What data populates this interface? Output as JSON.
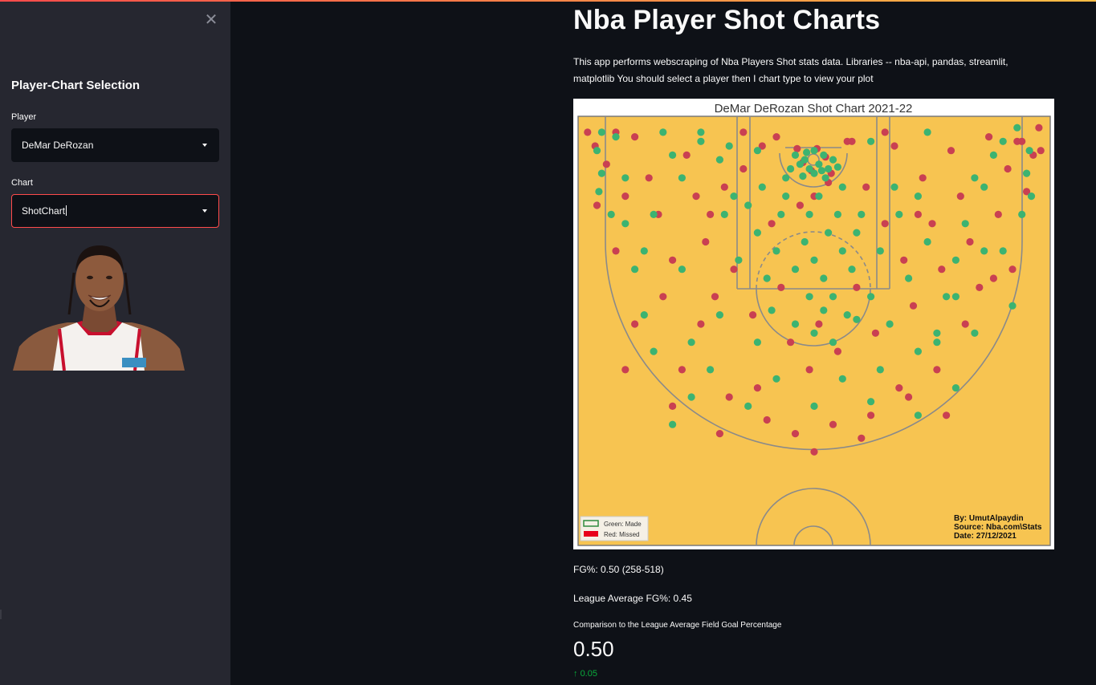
{
  "sidebar": {
    "close_icon": "close-icon",
    "heading": "Player-Chart Selection",
    "player_label": "Player",
    "player_value": "DeMar DeRozan",
    "chart_label": "Chart",
    "chart_value": "ShotChart"
  },
  "main": {
    "title": "Nba Player Shot Charts",
    "description": "This app performs webscraping of Nba Players Shot stats data. Libraries -- nba-api, pandas, streamlit, matplotlib You should select a player then I chart type to view your plot",
    "fg_text": "FG%: 0.50 (258-518)",
    "league_text": "League Average FG%: 0.45",
    "metric_label": "Comparison to the League Average Field Goal Percentage",
    "metric_value": "0.50",
    "metric_delta": "0.05",
    "delta_icon": "arrow-up-icon"
  },
  "colors": {
    "accent": "#ff4b4b",
    "court": "#f7c451",
    "made": "#3cb371",
    "missed": "#c94052",
    "delta": "#09ab3b"
  },
  "chart_data": {
    "type": "scatter",
    "title": "DeMar DeRozan Shot Chart 2021-22",
    "legend": {
      "placement": "bottom-left",
      "made_label": "Green: Made",
      "missed_label": "Red: Missed"
    },
    "credits": [
      "By: UmutAlpaydin",
      "Source: Nba.com\\Stats",
      "Date: 27/12/2021"
    ],
    "xlim": [
      -250,
      250
    ],
    "ylim": [
      -47.5,
      422.5
    ],
    "made": [
      [
        -230,
        -10
      ],
      [
        -225,
        15
      ],
      [
        -228,
        35
      ],
      [
        -215,
        60
      ],
      [
        -160,
        -30
      ],
      [
        -150,
        -5
      ],
      [
        -140,
        20
      ],
      [
        -120,
        -20
      ],
      [
        -100,
        0
      ],
      [
        -95,
        60
      ],
      [
        -90,
        -15
      ],
      [
        -80,
        110
      ],
      [
        -70,
        50
      ],
      [
        -60,
        80
      ],
      [
        -55,
        30
      ],
      [
        -50,
        130
      ],
      [
        -40,
        100
      ],
      [
        -35,
        60
      ],
      [
        -30,
        40
      ],
      [
        -20,
        120
      ],
      [
        -10,
        90
      ],
      [
        -5,
        60
      ],
      [
        0,
        110
      ],
      [
        5,
        40
      ],
      [
        10,
        130
      ],
      [
        15,
        80
      ],
      [
        20,
        150
      ],
      [
        25,
        60
      ],
      [
        30,
        100
      ],
      [
        35,
        170
      ],
      [
        40,
        120
      ],
      [
        45,
        80
      ],
      [
        50,
        60
      ],
      [
        60,
        150
      ],
      [
        70,
        100
      ],
      [
        80,
        180
      ],
      [
        90,
        60
      ],
      [
        100,
        130
      ],
      [
        110,
        40
      ],
      [
        120,
        90
      ],
      [
        130,
        200
      ],
      [
        140,
        150
      ],
      [
        150,
        110
      ],
      [
        160,
        70
      ],
      [
        170,
        190
      ],
      [
        180,
        30
      ],
      [
        190,
        -5
      ],
      [
        200,
        100
      ],
      [
        210,
        160
      ],
      [
        220,
        60
      ],
      [
        225,
        15
      ],
      [
        228,
        -10
      ],
      [
        230,
        40
      ],
      [
        -10,
        0
      ],
      [
        5,
        5
      ],
      [
        10,
        -5
      ],
      [
        -5,
        10
      ],
      [
        15,
        10
      ],
      [
        -15,
        5
      ],
      [
        0,
        15
      ],
      [
        20,
        0
      ],
      [
        -20,
        -5
      ],
      [
        8,
        12
      ],
      [
        -8,
        -8
      ],
      [
        25,
        8
      ],
      [
        -25,
        10
      ],
      [
        0,
        -10
      ],
      [
        12,
        20
      ],
      [
        -12,
        18
      ],
      [
        -170,
        210
      ],
      [
        -190,
        120
      ],
      [
        -200,
        70
      ],
      [
        -180,
        170
      ],
      [
        -130,
        260
      ],
      [
        -110,
        230
      ],
      [
        -60,
        200
      ],
      [
        -40,
        240
      ],
      [
        0,
        270
      ],
      [
        30,
        240
      ],
      [
        70,
        230
      ],
      [
        110,
        210
      ],
      [
        150,
        250
      ],
      [
        110,
        280
      ],
      [
        60,
        265
      ],
      [
        -70,
        270
      ],
      [
        -150,
        290
      ],
      [
        -100,
        170
      ],
      [
        -140,
        120
      ],
      [
        -30,
        20
      ],
      [
        30,
        30
      ],
      [
        -60,
        -10
      ],
      [
        60,
        -20
      ],
      [
        -85,
        40
      ],
      [
        85,
        30
      ],
      [
        150,
        150
      ],
      [
        -170,
        60
      ],
      [
        -120,
        -30
      ],
      [
        120,
        -30
      ],
      [
        170,
        20
      ],
      [
        -200,
        20
      ],
      [
        -210,
        -25
      ],
      [
        -225,
        -30
      ],
      [
        200,
        -20
      ],
      [
        215,
        -35
      ],
      [
        -180,
        100
      ],
      [
        180,
        100
      ],
      [
        -130,
        200
      ],
      [
        130,
        190
      ],
      [
        0,
        190
      ],
      [
        20,
        200
      ],
      [
        -20,
        180
      ],
      [
        45,
        175
      ],
      [
        -45,
        165
      ],
      [
        -5,
        150
      ],
      [
        10,
        165
      ]
    ],
    "missed": [
      [
        -232,
        -15
      ],
      [
        -220,
        5
      ],
      [
        -210,
        -30
      ],
      [
        -200,
        40
      ],
      [
        -190,
        -25
      ],
      [
        -175,
        20
      ],
      [
        -165,
        60
      ],
      [
        -150,
        110
      ],
      [
        -135,
        -5
      ],
      [
        -125,
        40
      ],
      [
        -115,
        90
      ],
      [
        -105,
        150
      ],
      [
        -95,
        30
      ],
      [
        -85,
        120
      ],
      [
        -75,
        10
      ],
      [
        -65,
        170
      ],
      [
        -55,
        -15
      ],
      [
        -45,
        70
      ],
      [
        -35,
        140
      ],
      [
        -25,
        200
      ],
      [
        -15,
        50
      ],
      [
        -5,
        230
      ],
      [
        5,
        180
      ],
      [
        15,
        25
      ],
      [
        25,
        210
      ],
      [
        35,
        -20
      ],
      [
        45,
        140
      ],
      [
        55,
        30
      ],
      [
        65,
        190
      ],
      [
        75,
        70
      ],
      [
        85,
        -15
      ],
      [
        95,
        110
      ],
      [
        105,
        160
      ],
      [
        115,
        20
      ],
      [
        125,
        70
      ],
      [
        135,
        120
      ],
      [
        145,
        -10
      ],
      [
        155,
        40
      ],
      [
        165,
        90
      ],
      [
        175,
        140
      ],
      [
        185,
        -25
      ],
      [
        195,
        60
      ],
      [
        205,
        10
      ],
      [
        215,
        -20
      ],
      [
        225,
        35
      ],
      [
        232,
        -5
      ],
      [
        -240,
        -30
      ],
      [
        238,
        -35
      ],
      [
        -12,
        3
      ],
      [
        12,
        -3
      ],
      [
        3,
        -12
      ],
      [
        -3,
        12
      ],
      [
        18,
        15
      ],
      [
        -18,
        -12
      ],
      [
        -160,
        150
      ],
      [
        -140,
        230
      ],
      [
        -120,
        180
      ],
      [
        -90,
        260
      ],
      [
        -60,
        250
      ],
      [
        -20,
        300
      ],
      [
        20,
        290
      ],
      [
        60,
        280
      ],
      [
        90,
        250
      ],
      [
        130,
        230
      ],
      [
        160,
        180
      ],
      [
        190,
        130
      ],
      [
        -200,
        230
      ],
      [
        -150,
        270
      ],
      [
        -100,
        300
      ],
      [
        -50,
        285
      ],
      [
        0,
        320
      ],
      [
        50,
        305
      ],
      [
        100,
        260
      ],
      [
        140,
        280
      ],
      [
        -190,
        180
      ],
      [
        -210,
        100
      ],
      [
        210,
        120
      ],
      [
        220,
        -20
      ],
      [
        -230,
        50
      ],
      [
        240,
        -10
      ],
      [
        -75,
        -30
      ],
      [
        75,
        -30
      ],
      [
        -40,
        -25
      ],
      [
        40,
        -20
      ],
      [
        0,
        40
      ],
      [
        -110,
        60
      ],
      [
        110,
        60
      ]
    ]
  }
}
